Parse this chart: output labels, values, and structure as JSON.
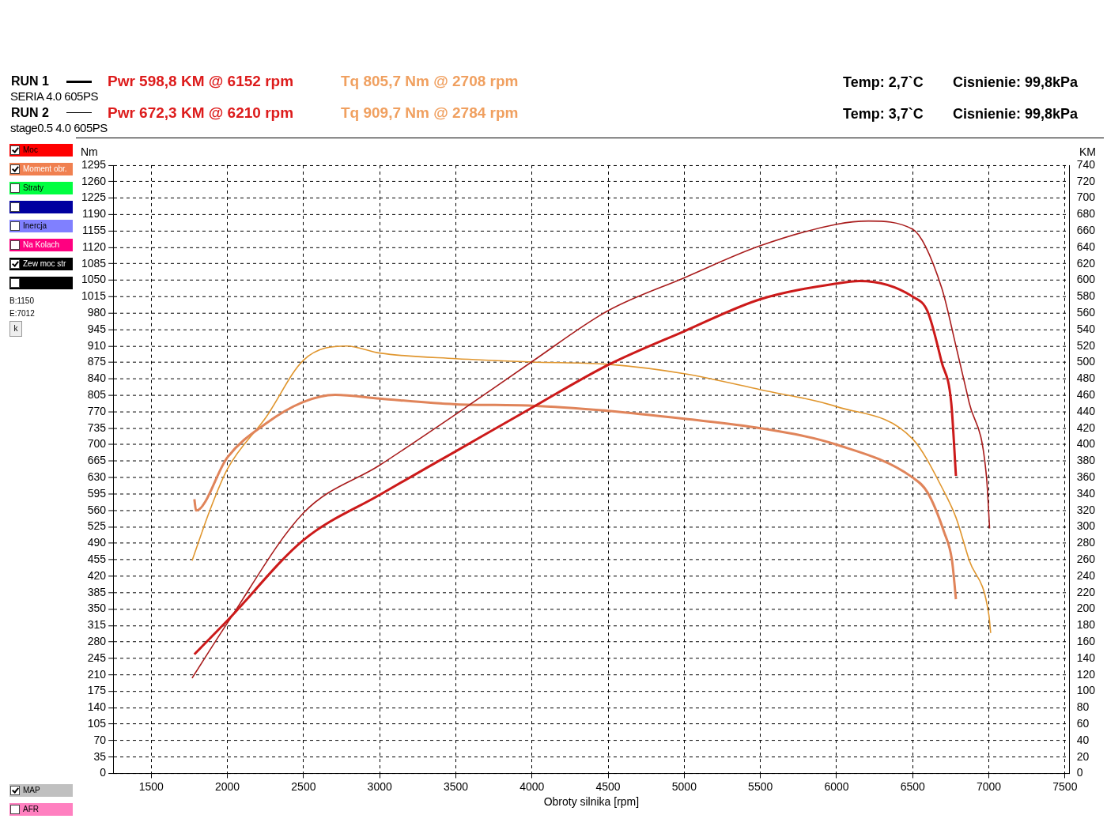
{
  "chart_data": {
    "type": "line",
    "xlabel": "Obroty silnika [rpm]",
    "ylabel": "Nm",
    "y2label": "KM",
    "xlim": [
      1250,
      7530
    ],
    "xticks": [
      1500,
      2000,
      2500,
      3000,
      3500,
      4000,
      4500,
      5000,
      5500,
      6000,
      6500,
      7000,
      7500
    ],
    "ylim": [
      0,
      1295
    ],
    "yticks": [
      0,
      35,
      70,
      105,
      140,
      175,
      210,
      245,
      280,
      315,
      350,
      385,
      420,
      455,
      490,
      525,
      560,
      595,
      630,
      665,
      700,
      735,
      770,
      805,
      840,
      875,
      910,
      945,
      980,
      1015,
      1050,
      1085,
      1120,
      1155,
      1190,
      1225,
      1260,
      1295
    ],
    "y2lim": [
      0,
      740
    ],
    "y2ticks": [
      0,
      20,
      40,
      60,
      80,
      100,
      120,
      140,
      160,
      180,
      200,
      220,
      240,
      260,
      280,
      300,
      320,
      340,
      360,
      380,
      400,
      420,
      440,
      460,
      480,
      500,
      520,
      540,
      560,
      580,
      600,
      620,
      640,
      660,
      680,
      700,
      720,
      740
    ],
    "grid": true,
    "marker": "none",
    "line_style": "solid",
    "series": [
      {
        "color": "#cc1a1a",
        "axis": "y2",
        "x": [
          1783,
          2000,
          2500,
          3000,
          3500,
          4000,
          4500,
          5000,
          5500,
          6000,
          6152,
          6500,
          6598,
          6691,
          6753,
          6784
        ],
        "values": [
          145,
          186,
          284,
          339,
          392,
          445,
          497,
          538,
          577,
          596,
          599,
          580,
          562,
          500,
          451,
          362
        ]
      },
      {
        "color": "#a81c1c",
        "axis": "y2",
        "x": [
          1768,
          2000,
          2500,
          3000,
          3500,
          4000,
          4500,
          5000,
          5500,
          6000,
          6210,
          6500,
          6690,
          6784,
          6871,
          6985,
          7005
        ],
        "values": [
          116,
          183,
          317,
          375,
          437,
          501,
          563,
          603,
          642,
          668,
          672,
          662,
          591,
          520,
          451,
          360,
          298
        ]
      },
      {
        "color": "#e0845a",
        "axis": "y",
        "x": [
          1783,
          1794,
          2000,
          2253,
          2500,
          2708,
          3000,
          3500,
          4000,
          4500,
          5000,
          5500,
          6000,
          6500,
          6598,
          6706,
          6758,
          6784
        ],
        "values": [
          584,
          560,
          673,
          745,
          791,
          806,
          798,
          786,
          783,
          772,
          755,
          735,
          700,
          630,
          598,
          514,
          454,
          371
        ]
      },
      {
        "color": "#e0962e",
        "axis": "y",
        "x": [
          1768,
          1887,
          2000,
          2253,
          2500,
          2784,
          3000,
          3500,
          4000,
          4500,
          5000,
          5500,
          6000,
          6500,
          6706,
          6784,
          6871,
          7000,
          7012
        ],
        "values": [
          453,
          562,
          648,
          758,
          880,
          910,
          895,
          883,
          876,
          871,
          851,
          817,
          781,
          712,
          600,
          545,
          454,
          338,
          299
        ]
      }
    ],
    "annotations": [
      "RUN 1",
      "Pwr  598,8 KM @ 6152 rpm",
      "Tq 805,7 Nm @ 2708 rpm",
      "Temp: 2,7`C",
      "Cisnienie: 99,8kPa",
      "SERIA 4.0 605PS",
      "RUN 2",
      "Pwr  672,3 KM @ 6210 rpm",
      "Tq 909,7 Nm @ 2784 rpm",
      "Temp: 3,7`C",
      "Cisnienie: 99,8kPa",
      "stage0.5 4.0 605PS",
      "Moc",
      "Moment obr.",
      "Straty",
      "Inercja",
      "Na Kolach",
      "Zew moc str",
      "B:1150",
      "E:7012",
      "k",
      "MAP",
      "AFR"
    ]
  }
}
